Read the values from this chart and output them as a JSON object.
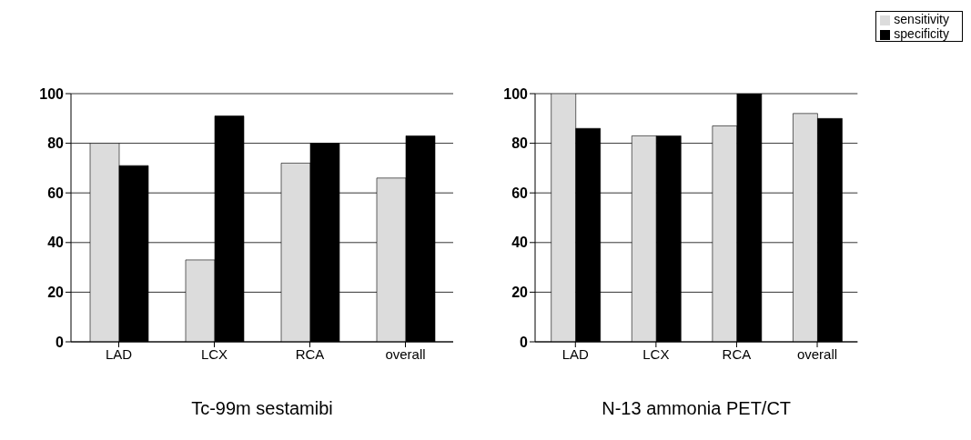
{
  "chart_data": [
    {
      "type": "bar",
      "xlabel": "Tc-99m sestamibi",
      "categories": [
        "LAD",
        "LCX",
        "RCA",
        "overall"
      ],
      "series": [
        {
          "color": "#dcdcdc",
          "values": [
            80,
            33,
            72,
            66
          ]
        },
        {
          "color": "#000000",
          "values": [
            71,
            91,
            80,
            83
          ]
        }
      ],
      "ylim": [
        0,
        100
      ],
      "yticks": [
        0,
        20,
        40,
        60,
        80,
        100
      ],
      "grid": "y",
      "legend": false
    },
    {
      "type": "bar",
      "xlabel": "N-13 ammonia PET/CT",
      "categories": [
        "LAD",
        "LCX",
        "RCA",
        "overall"
      ],
      "series": [
        {
          "name": "sensitivity",
          "color": "#dcdcdc",
          "values": [
            100,
            83,
            87,
            92
          ]
        },
        {
          "name": "specificity",
          "color": "#000000",
          "values": [
            86,
            83,
            100,
            90
          ]
        }
      ],
      "ylim": [
        0,
        100
      ],
      "yticks": [
        0,
        20,
        40,
        60,
        80,
        100
      ],
      "grid": "y",
      "legend": "top right"
    }
  ]
}
